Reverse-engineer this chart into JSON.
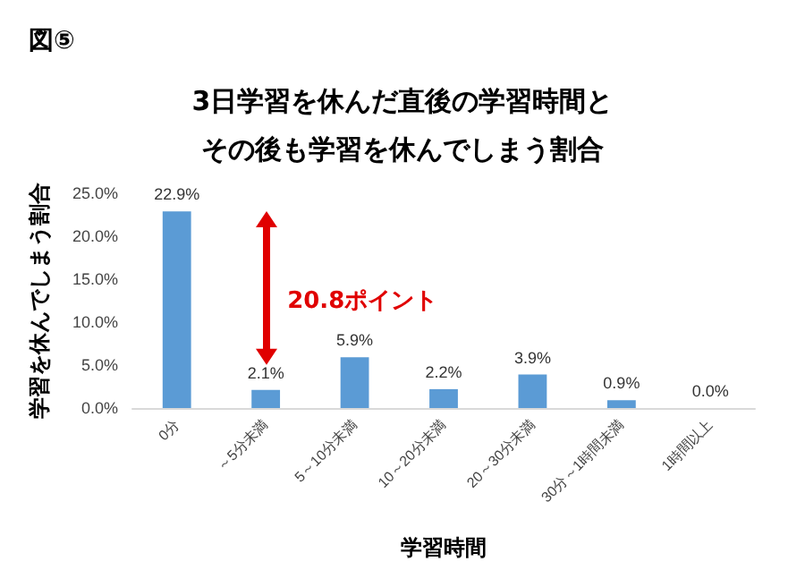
{
  "chart_data": {
    "type": "bar",
    "title": "3日学習を休んだ直後の学習時間とその後も学習を休んでしまう割合",
    "xlabel": "学習時間",
    "ylabel": "学習を休んでしまう割合",
    "categories": [
      "0分",
      "～5分未満",
      "5～10分未満",
      "10～20分未満",
      "20～30分未満",
      "30分～1時間未満",
      "1時間以上"
    ],
    "values": [
      22.9,
      2.1,
      5.9,
      2.2,
      3.9,
      0.9,
      0.0
    ],
    "value_labels": [
      "22.9%",
      "2.1%",
      "5.9%",
      "2.2%",
      "3.9%",
      "0.9%",
      "0.0%"
    ],
    "color": "#5b9bd5",
    "ylim": [
      0,
      25
    ],
    "yticks": [
      {
        "value": 0,
        "label": "0.0%"
      },
      {
        "value": 5,
        "label": "5.0%"
      },
      {
        "value": 10,
        "label": "10.0%"
      },
      {
        "value": 15,
        "label": "15.0%"
      },
      {
        "value": 20,
        "label": "20.0%"
      },
      {
        "value": 25,
        "label": "25.0%"
      }
    ],
    "grid": false,
    "annotations": [
      "図⑤",
      "20.8ポイント"
    ]
  }
}
